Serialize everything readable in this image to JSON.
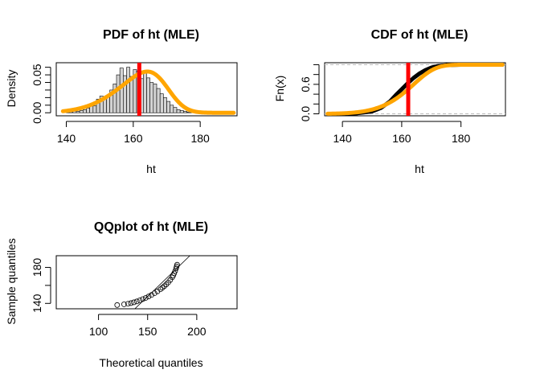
{
  "colors": {
    "hist_fill": "#d3d3d3",
    "fit": "#ffa500",
    "mean_line": "#ff0000",
    "ecdf": "#000000",
    "guide": "#bebebe"
  },
  "chart_data": [
    {
      "type": "histogram",
      "title": "PDF of ht (MLE)",
      "xlabel": "ht",
      "ylabel": "Density",
      "xlim": [
        137,
        191
      ],
      "ylim": [
        -0.004,
        0.066
      ],
      "xticks": [
        140,
        160,
        180
      ],
      "yticks": [
        0.0,
        0.05
      ],
      "ytick_labels": [
        "0.00",
        "0.05"
      ],
      "minor_yticks": [
        0.01,
        0.02,
        0.03,
        0.04,
        0.06
      ],
      "bins": [
        {
          "x0": 140,
          "x1": 141,
          "y": 0.001
        },
        {
          "x0": 141,
          "x1": 142,
          "y": 0.001
        },
        {
          "x0": 142,
          "x1": 143,
          "y": 0.002
        },
        {
          "x0": 143,
          "x1": 144,
          "y": 0.002
        },
        {
          "x0": 144,
          "x1": 145,
          "y": 0.003
        },
        {
          "x0": 145,
          "x1": 146,
          "y": 0.004
        },
        {
          "x0": 146,
          "x1": 147,
          "y": 0.006
        },
        {
          "x0": 147,
          "x1": 148,
          "y": 0.01
        },
        {
          "x0": 148,
          "x1": 149,
          "y": 0.009
        },
        {
          "x0": 149,
          "x1": 150,
          "y": 0.018
        },
        {
          "x0": 150,
          "x1": 151,
          "y": 0.022
        },
        {
          "x0": 151,
          "x1": 152,
          "y": 0.02
        },
        {
          "x0": 152,
          "x1": 153,
          "y": 0.022
        },
        {
          "x0": 153,
          "x1": 154,
          "y": 0.03
        },
        {
          "x0": 154,
          "x1": 155,
          "y": 0.038
        },
        {
          "x0": 155,
          "x1": 156,
          "y": 0.05
        },
        {
          "x0": 156,
          "x1": 157,
          "y": 0.059
        },
        {
          "x0": 157,
          "x1": 158,
          "y": 0.049
        },
        {
          "x0": 158,
          "x1": 159,
          "y": 0.06
        },
        {
          "x0": 159,
          "x1": 160,
          "y": 0.048
        },
        {
          "x0": 160,
          "x1": 161,
          "y": 0.057
        },
        {
          "x0": 161,
          "x1": 162,
          "y": 0.055
        },
        {
          "x0": 162,
          "x1": 163,
          "y": 0.045
        },
        {
          "x0": 163,
          "x1": 164,
          "y": 0.052
        },
        {
          "x0": 164,
          "x1": 165,
          "y": 0.046
        },
        {
          "x0": 165,
          "x1": 166,
          "y": 0.04
        },
        {
          "x0": 166,
          "x1": 167,
          "y": 0.038
        },
        {
          "x0": 167,
          "x1": 168,
          "y": 0.032
        },
        {
          "x0": 168,
          "x1": 169,
          "y": 0.025
        },
        {
          "x0": 169,
          "x1": 170,
          "y": 0.02
        },
        {
          "x0": 170,
          "x1": 171,
          "y": 0.015
        },
        {
          "x0": 171,
          "x1": 172,
          "y": 0.01
        },
        {
          "x0": 172,
          "x1": 173,
          "y": 0.007
        },
        {
          "x0": 173,
          "x1": 174,
          "y": 0.004
        },
        {
          "x0": 174,
          "x1": 175,
          "y": 0.003
        },
        {
          "x0": 175,
          "x1": 176,
          "y": 0.002
        },
        {
          "x0": 176,
          "x1": 177,
          "y": 0.001
        },
        {
          "x0": 177,
          "x1": 178,
          "y": 0.001
        }
      ],
      "fit": {
        "dist": "skew-normal",
        "xi": 170,
        "omega": 11.7,
        "alpha": -2.6,
        "x_range": [
          139,
          190
        ]
      },
      "vline": 161.8
    },
    {
      "type": "line",
      "title": "CDF of ht (MLE)",
      "xlabel": "ht",
      "ylabel": "Fn(x)",
      "xlim": [
        134,
        195
      ],
      "ylim": [
        -0.04,
        1.04
      ],
      "xticks": [
        140,
        160,
        180
      ],
      "yticks": [
        0.0,
        0.6
      ],
      "ytick_labels": [
        "0.0",
        "0.6"
      ],
      "minor_yticks": [
        0.2,
        0.4,
        0.8,
        1.0
      ],
      "hlines": [
        0,
        1
      ],
      "ecdf": {
        "points": [
          [
            140,
            0.0
          ],
          [
            145,
            0.012
          ],
          [
            150,
            0.05
          ],
          [
            153,
            0.12
          ],
          [
            156,
            0.25
          ],
          [
            158,
            0.38
          ],
          [
            160,
            0.5
          ],
          [
            162,
            0.62
          ],
          [
            164,
            0.73
          ],
          [
            166,
            0.82
          ],
          [
            168,
            0.89
          ],
          [
            170,
            0.94
          ],
          [
            172,
            0.97
          ],
          [
            175,
            0.99
          ],
          [
            180,
            1.0
          ],
          [
            194,
            1.0
          ]
        ]
      },
      "fit": {
        "dist": "skew-normal",
        "xi": 170,
        "omega": 11.7,
        "alpha": -2.6,
        "x_range": [
          135,
          194
        ]
      },
      "vline": 162.2
    },
    {
      "type": "scatter",
      "title": "QQplot of ht (MLE)",
      "xlabel": "Theoretical quantiles",
      "ylabel": "Sample quantiles",
      "xlim": [
        57,
        241
      ],
      "ylim": [
        134,
        193
      ],
      "xticks": [
        100,
        150,
        200
      ],
      "yticks": [
        140,
        180
      ],
      "ytick_labels": [
        "140",
        "180"
      ],
      "minor_yticks": [
        160
      ],
      "points": [
        [
          119,
          138.2
        ],
        [
          126,
          139.0
        ],
        [
          130,
          139.6
        ],
        [
          133,
          140.3
        ],
        [
          136,
          141.2
        ],
        [
          139,
          142.2
        ],
        [
          142,
          143.4
        ],
        [
          145,
          144.7
        ],
        [
          148,
          146.1
        ],
        [
          151,
          147.7
        ],
        [
          154,
          149.4
        ],
        [
          157,
          151.3
        ],
        [
          160,
          153.4
        ],
        [
          163,
          155.7
        ],
        [
          165,
          157.4
        ],
        [
          167,
          159.2
        ],
        [
          169,
          161.2
        ],
        [
          171,
          163.4
        ],
        [
          173,
          166.0
        ],
        [
          175,
          169.0
        ],
        [
          176,
          171.0
        ],
        [
          177,
          173.4
        ],
        [
          178,
          176.0
        ],
        [
          179,
          179.0
        ],
        [
          179.5,
          181.0
        ],
        [
          180,
          183.0
        ]
      ],
      "line": [
        [
          137,
          134
        ],
        [
          193,
          193
        ]
      ]
    }
  ]
}
